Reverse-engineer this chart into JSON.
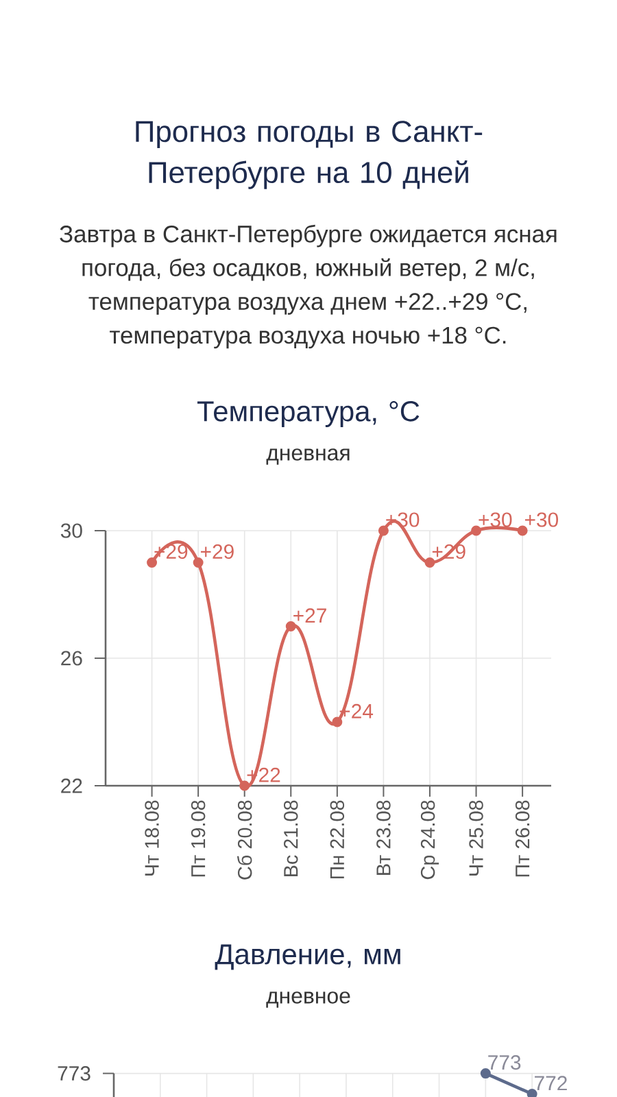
{
  "chart_data": [
    {
      "type": "other",
      "title": "Прогноз погоды в Санкт-Петербурге на 10 дней",
      "annotations": [
        "Завтра в Санкт-Петербурге ожидается ясная погода, без осадков, южный ветер, 2 м/с, температура воздуха днем +22..+29 °C, температура воздуха ночью +18 °C."
      ]
    },
    {
      "type": "line",
      "title": "Температура, °C",
      "subtitle": "дневная",
      "categories": [
        "Чт 18.08",
        "Пт 19.08",
        "Сб 20.08",
        "Вс 21.08",
        "Пн 22.08",
        "Вт 23.08",
        "Ср 24.08",
        "Чт 25.08",
        "Пт 26.08"
      ],
      "values": [
        29,
        29,
        22,
        27,
        24,
        30,
        29,
        30,
        30
      ],
      "value_labels": [
        "+29",
        "+29",
        "+22",
        "+27",
        "+24",
        "+30",
        "+29",
        "+30",
        "+30"
      ],
      "color": "#d4655b",
      "ylim": [
        22,
        30
      ],
      "yticks": [
        22,
        26,
        30
      ],
      "grid": true,
      "marker": "circle"
    },
    {
      "type": "line",
      "title": "Давление, мм",
      "subtitle": "дневное",
      "categories": [
        null,
        null,
        null,
        null,
        null,
        null,
        null,
        null,
        null
      ],
      "values": [
        null,
        null,
        null,
        null,
        null,
        null,
        null,
        773,
        772
      ],
      "data_labels": true,
      "annotations": [
        "773"
      ],
      "color": "#5d6b8c",
      "ylim": [
        771.85,
        773
      ],
      "grid": true,
      "marker": "circle"
    }
  ]
}
